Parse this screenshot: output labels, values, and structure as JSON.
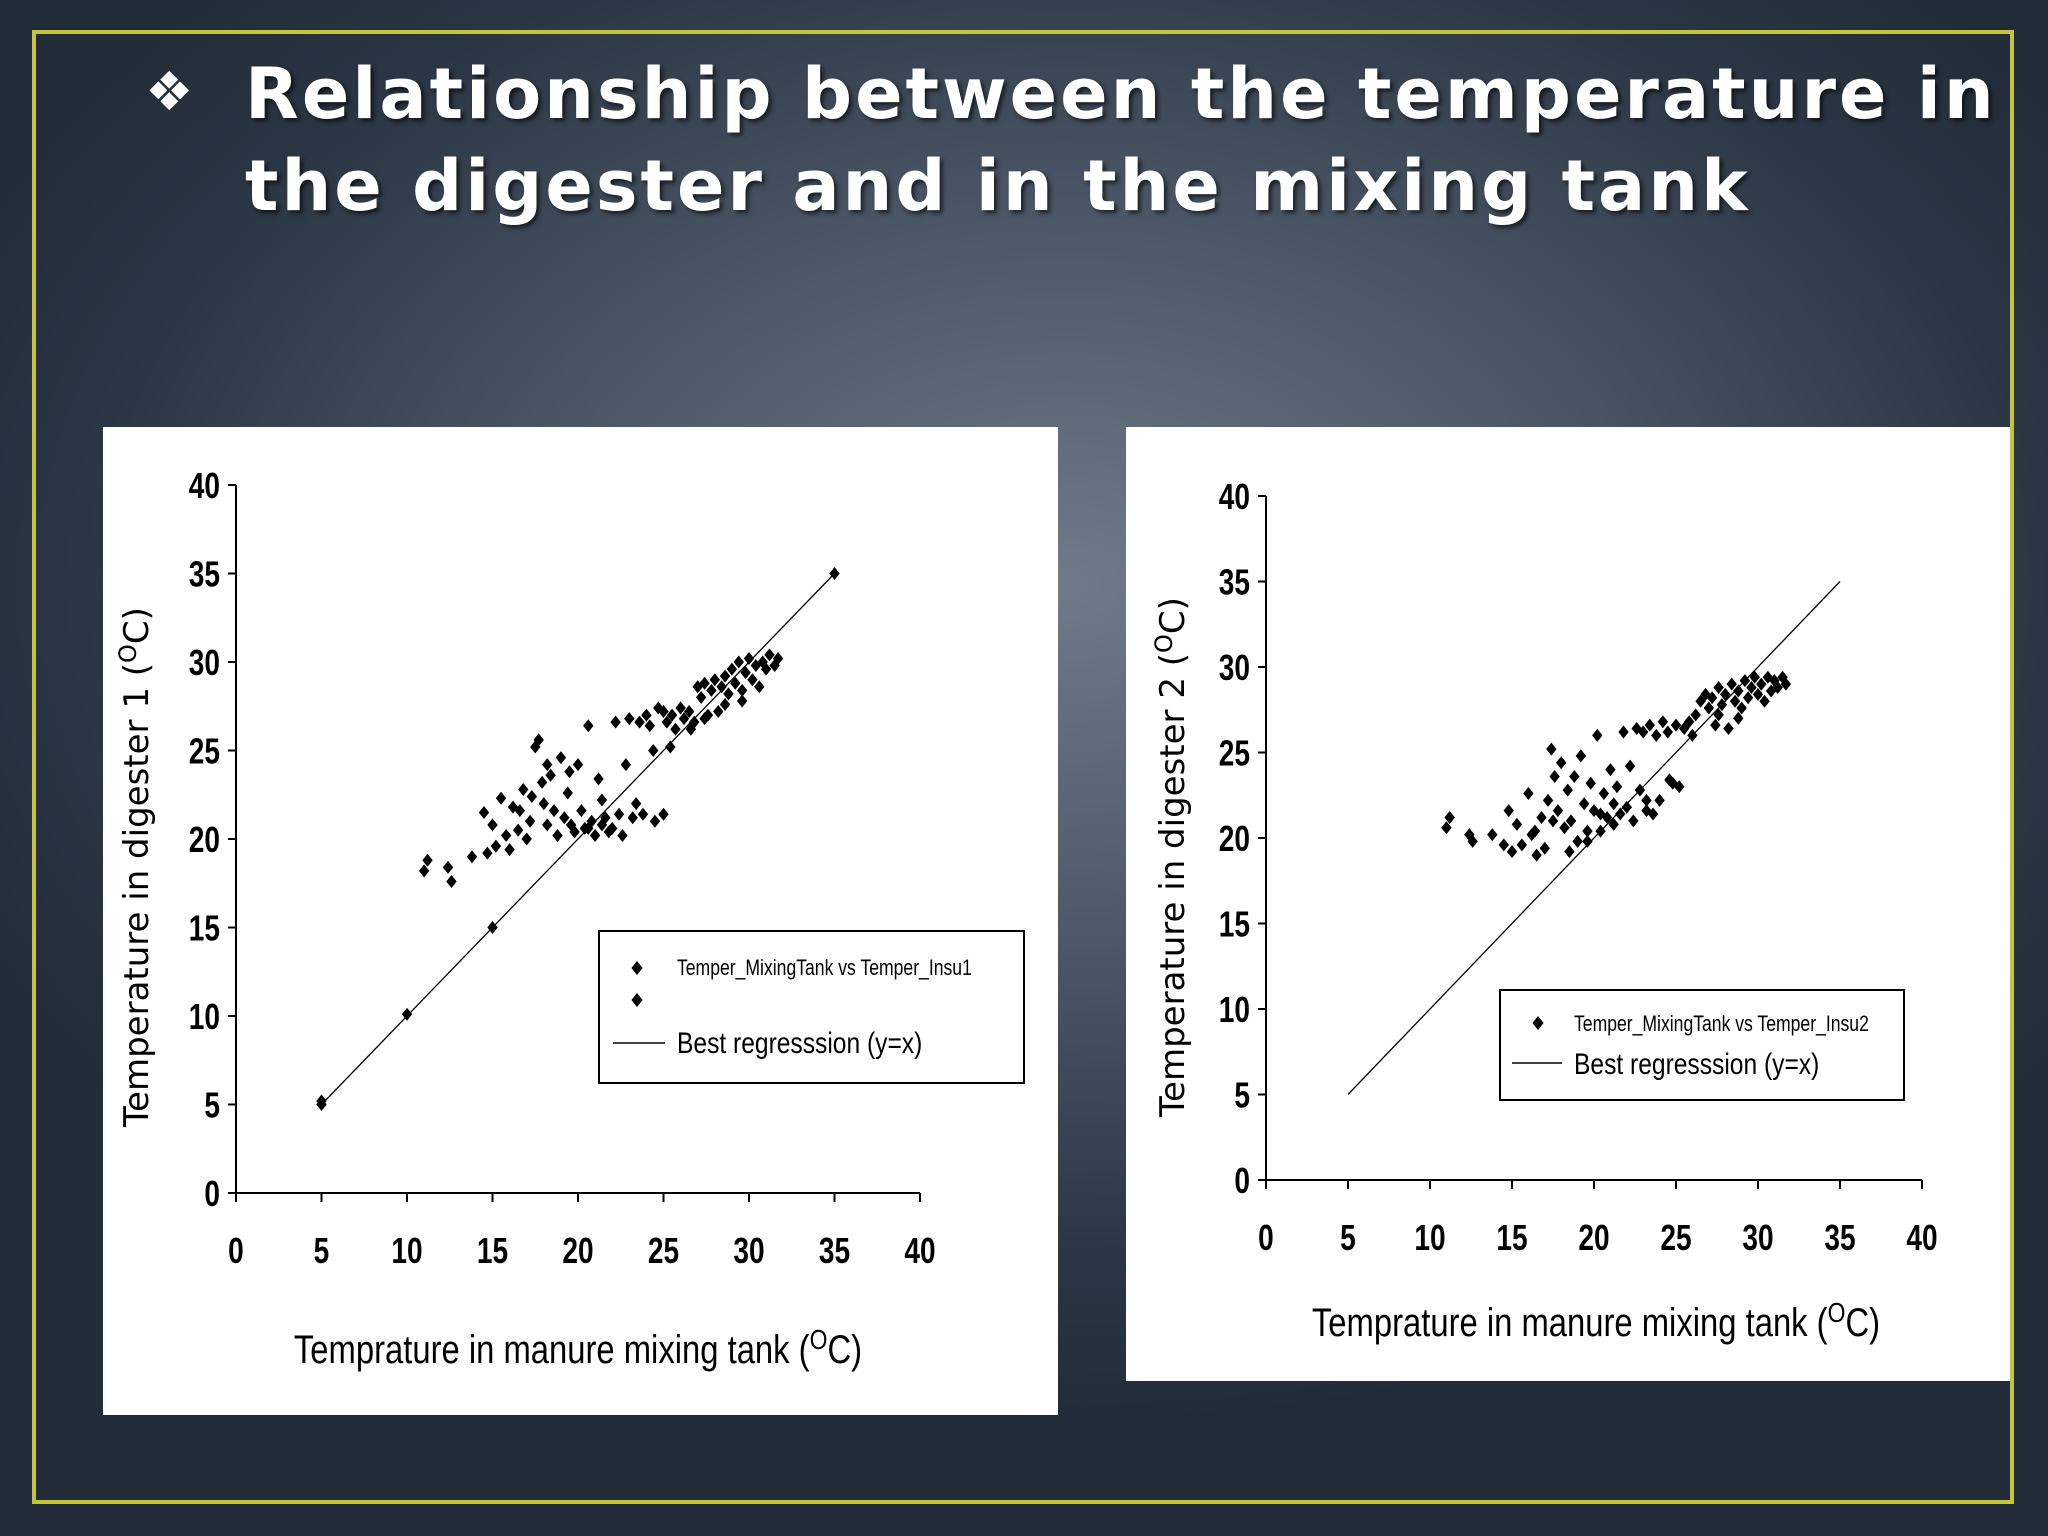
{
  "slide": {
    "bullet_icon": "four-diamond-bullet-icon",
    "title": "Relationship between the temperature in the digester and in the mixing tank",
    "frame_color": "#c8c43a"
  },
  "chart_data": [
    {
      "type": "scatter",
      "title": "",
      "xlabel": "Temprature in manure mixing tank (",
      "xlabel_sup": "O",
      "xlabel_tail": "C)",
      "ylabel": "Temperature in digester 1 (",
      "ylabel_sup": "O",
      "ylabel_tail": "C)",
      "xlim": [
        0,
        40
      ],
      "ylim": [
        0,
        40
      ],
      "xticks": [
        "0",
        "5",
        "10",
        "15",
        "20",
        "25",
        "30",
        "35",
        "40"
      ],
      "yticks": [
        "0",
        "5",
        "10",
        "15",
        "20",
        "25",
        "30",
        "35",
        "40"
      ],
      "grid": false,
      "legend_position": "lower-right",
      "legend": [
        "Temper_MixingTank vs Temper_Insu1",
        "",
        "Best regresssion (y=x)"
      ],
      "line": {
        "name": "Best regresssion (y=x)",
        "x": [
          5,
          35
        ],
        "y": [
          5,
          35
        ]
      },
      "series": [
        {
          "name": "Temper_MixingTank vs Temper_Insu1",
          "points": [
            [
              5,
              5
            ],
            [
              5,
              5.2
            ],
            [
              10,
              10.1
            ],
            [
              15,
              15
            ],
            [
              35,
              35
            ],
            [
              11,
              18.2
            ],
            [
              11.2,
              18.8
            ],
            [
              12.4,
              18.4
            ],
            [
              12.6,
              17.6
            ],
            [
              13.8,
              19
            ],
            [
              14.5,
              21.5
            ],
            [
              14.7,
              19.2
            ],
            [
              15,
              20.8
            ],
            [
              15.2,
              19.6
            ],
            [
              15.5,
              22.3
            ],
            [
              15.8,
              20.2
            ],
            [
              16,
              19.4
            ],
            [
              16.2,
              21.8
            ],
            [
              16.5,
              20.5
            ],
            [
              16.8,
              22.8
            ],
            [
              17,
              20
            ],
            [
              17.2,
              21
            ],
            [
              17.5,
              25.2
            ],
            [
              17.7,
              25.6
            ],
            [
              17.9,
              23.2
            ],
            [
              18,
              22
            ],
            [
              18.2,
              24.2
            ],
            [
              18.4,
              23.6
            ],
            [
              18.6,
              21.6
            ],
            [
              18.8,
              20.2
            ],
            [
              19,
              24.6
            ],
            [
              19.2,
              21.2
            ],
            [
              19.4,
              22.6
            ],
            [
              19.6,
              20.8
            ],
            [
              19.8,
              20.4
            ],
            [
              20,
              24.2
            ],
            [
              20.2,
              21.6
            ],
            [
              20.4,
              20.6
            ],
            [
              20.6,
              26.4
            ],
            [
              20.8,
              21
            ],
            [
              21,
              20.2
            ],
            [
              21.2,
              23.4
            ],
            [
              21.4,
              20.8
            ],
            [
              21.6,
              21.2
            ],
            [
              21.8,
              20.4
            ],
            [
              22,
              20.6
            ],
            [
              22.2,
              26.6
            ],
            [
              22.4,
              21.4
            ],
            [
              22.6,
              20.2
            ],
            [
              22.8,
              24.2
            ],
            [
              23,
              26.8
            ],
            [
              23.2,
              21.2
            ],
            [
              23.4,
              22
            ],
            [
              23.6,
              26.6
            ],
            [
              23.8,
              21.4
            ],
            [
              24,
              27
            ],
            [
              24.2,
              26.4
            ],
            [
              24.5,
              21
            ],
            [
              24.7,
              27.4
            ],
            [
              25,
              27.2
            ],
            [
              25,
              21.4
            ],
            [
              25.2,
              26.6
            ],
            [
              25.5,
              27
            ],
            [
              25.7,
              26.2
            ],
            [
              26,
              27.4
            ],
            [
              26.2,
              26.8
            ],
            [
              26.5,
              27.2
            ],
            [
              26.8,
              26.6
            ],
            [
              27,
              28.6
            ],
            [
              27.2,
              28
            ],
            [
              27.4,
              28.8
            ],
            [
              27.6,
              27
            ],
            [
              27.8,
              28.4
            ],
            [
              28,
              29
            ],
            [
              28.2,
              27.2
            ],
            [
              28.4,
              28.6
            ],
            [
              28.6,
              29.2
            ],
            [
              28.8,
              28.2
            ],
            [
              29,
              29.6
            ],
            [
              29.2,
              28.8
            ],
            [
              29.4,
              30
            ],
            [
              29.6,
              28.4
            ],
            [
              29.8,
              29.4
            ],
            [
              30,
              30.2
            ],
            [
              30.2,
              29
            ],
            [
              30.4,
              29.8
            ],
            [
              30.6,
              28.6
            ],
            [
              30.8,
              30
            ],
            [
              31,
              29.6
            ],
            [
              31.2,
              30.4
            ],
            [
              31.5,
              29.8
            ],
            [
              31.7,
              30.2
            ],
            [
              20.6,
              20.6
            ],
            [
              21.4,
              22.2
            ],
            [
              18.2,
              20.8
            ],
            [
              17.3,
              22.4
            ],
            [
              16.6,
              21.6
            ],
            [
              19.5,
              23.8
            ],
            [
              24.4,
              25
            ],
            [
              25.4,
              25.2
            ],
            [
              26.6,
              26.2
            ],
            [
              27.4,
              26.8
            ],
            [
              28.6,
              27.6
            ],
            [
              29.6,
              27.8
            ]
          ]
        }
      ]
    },
    {
      "type": "scatter",
      "title": "",
      "xlabel": "Temprature in manure mixing tank (",
      "xlabel_sup": "O",
      "xlabel_tail": "C)",
      "ylabel": "Temperature in digester 2 (",
      "ylabel_sup": "O",
      "ylabel_tail": "C)",
      "xlim": [
        0,
        40
      ],
      "ylim": [
        0,
        40
      ],
      "xticks": [
        "0",
        "5",
        "10",
        "15",
        "20",
        "25",
        "30",
        "35",
        "40"
      ],
      "yticks": [
        "0",
        "5",
        "10",
        "15",
        "20",
        "25",
        "30",
        "35",
        "40"
      ],
      "grid": false,
      "legend_position": "lower-right",
      "legend": [
        "Temper_MixingTank vs Temper_Insu2",
        "Best regresssion (y=x)"
      ],
      "line": {
        "name": "Best regresssion (y=x)",
        "x": [
          5,
          35
        ],
        "y": [
          5,
          35
        ]
      },
      "series": [
        {
          "name": "Temper_MixingTank vs Temper_Insu2",
          "points": [
            [
              11,
              20.6
            ],
            [
              11.2,
              21.2
            ],
            [
              12.4,
              20.2
            ],
            [
              12.6,
              19.8
            ],
            [
              13.8,
              20.2
            ],
            [
              14.5,
              19.6
            ],
            [
              14.8,
              21.6
            ],
            [
              15,
              19.2
            ],
            [
              15.3,
              20.8
            ],
            [
              15.6,
              19.6
            ],
            [
              16,
              22.6
            ],
            [
              16.2,
              20.2
            ],
            [
              16.5,
              19
            ],
            [
              16.8,
              21.2
            ],
            [
              17,
              19.4
            ],
            [
              17.2,
              22.2
            ],
            [
              17.4,
              25.2
            ],
            [
              17.6,
              23.6
            ],
            [
              17.8,
              21.6
            ],
            [
              18,
              24.4
            ],
            [
              18.2,
              20.6
            ],
            [
              18.4,
              22.8
            ],
            [
              18.6,
              21
            ],
            [
              18.8,
              23.6
            ],
            [
              19,
              19.8
            ],
            [
              19.2,
              24.8
            ],
            [
              19.4,
              22
            ],
            [
              19.6,
              20.4
            ],
            [
              19.8,
              23.2
            ],
            [
              20,
              21.6
            ],
            [
              20.2,
              26
            ],
            [
              20.4,
              20.4
            ],
            [
              20.6,
              22.6
            ],
            [
              20.8,
              21.2
            ],
            [
              21,
              24
            ],
            [
              21.2,
              20.8
            ],
            [
              21.4,
              23
            ],
            [
              21.6,
              21.4
            ],
            [
              21.8,
              26.2
            ],
            [
              22,
              21.8
            ],
            [
              22.2,
              24.2
            ],
            [
              22.4,
              21
            ],
            [
              22.6,
              26.4
            ],
            [
              22.8,
              22.8
            ],
            [
              23,
              26.2
            ],
            [
              23.2,
              22.2
            ],
            [
              23.4,
              26.6
            ],
            [
              23.6,
              21.4
            ],
            [
              23.8,
              26
            ],
            [
              24,
              22.2
            ],
            [
              24.2,
              26.8
            ],
            [
              24.5,
              26.2
            ],
            [
              24.8,
              23.2
            ],
            [
              25,
              26.6
            ],
            [
              25.2,
              23
            ],
            [
              25.5,
              26.4
            ],
            [
              25.8,
              26.8
            ],
            [
              26,
              26
            ],
            [
              26.2,
              27.2
            ],
            [
              26.5,
              28
            ],
            [
              26.8,
              28.4
            ],
            [
              27,
              27.6
            ],
            [
              27.2,
              28.2
            ],
            [
              27.4,
              26.6
            ],
            [
              27.6,
              28.8
            ],
            [
              27.8,
              27.8
            ],
            [
              28,
              28.4
            ],
            [
              28.2,
              26.4
            ],
            [
              28.4,
              29
            ],
            [
              28.6,
              28
            ],
            [
              28.8,
              28.6
            ],
            [
              29,
              27.6
            ],
            [
              29.2,
              29.2
            ],
            [
              29.4,
              28.2
            ],
            [
              29.6,
              28.8
            ],
            [
              29.8,
              29.4
            ],
            [
              30,
              28.4
            ],
            [
              30.2,
              29
            ],
            [
              30.4,
              28
            ],
            [
              30.6,
              29.4
            ],
            [
              30.8,
              28.6
            ],
            [
              31,
              29.2
            ],
            [
              31.2,
              28.8
            ],
            [
              31.5,
              29.4
            ],
            [
              31.7,
              29
            ],
            [
              19.6,
              19.8
            ],
            [
              20.4,
              21.4
            ],
            [
              18.5,
              19.2
            ],
            [
              17.5,
              21
            ],
            [
              16.4,
              20.4
            ],
            [
              21.2,
              22
            ],
            [
              23.2,
              21.6
            ],
            [
              24.6,
              23.4
            ],
            [
              27.6,
              27.2
            ],
            [
              28.8,
              27
            ]
          ]
        }
      ]
    }
  ]
}
